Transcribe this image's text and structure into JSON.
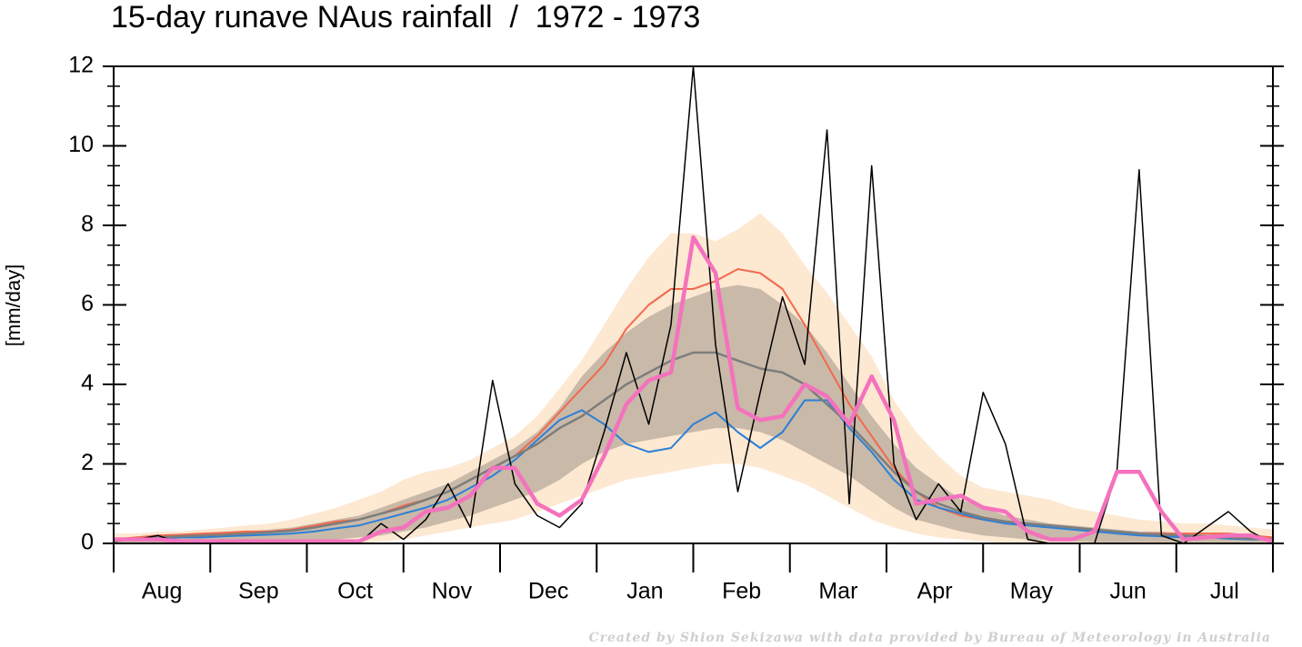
{
  "chart_data": {
    "type": "line",
    "title": "15-day runave NAus rainfall  /  1972 - 1973",
    "ylabel": "[mm/day]",
    "footnote": "Created by Shion Sekizawa with data provided by Bureau of Meteorology in Australia",
    "xlabels": [
      "Aug",
      "Sep",
      "Oct",
      "Nov",
      "Dec",
      "Jan",
      "Feb",
      "Mar",
      "Apr",
      "May",
      "Jun",
      "Jul"
    ],
    "ylim": [
      0,
      12
    ],
    "yticks": [
      0,
      2,
      4,
      6,
      8,
      10,
      12
    ],
    "bands": [
      {
        "color": "#fde8d2",
        "lower": [
          0,
          0,
          0,
          0,
          0,
          0,
          0,
          0,
          0,
          0,
          0,
          0,
          0.05,
          0.1,
          0.2,
          0.3,
          0.4,
          0.5,
          0.6,
          0.8,
          1.0,
          1.2,
          1.4,
          1.6,
          1.7,
          1.8,
          1.9,
          2.0,
          2.0,
          1.9,
          1.7,
          1.5,
          1.2,
          0.9,
          0.6,
          0.4,
          0.25,
          0.15,
          0.1,
          0.05,
          0,
          0,
          0,
          0,
          0,
          0,
          0,
          0,
          0,
          0,
          0,
          0,
          0
        ],
        "upper": [
          0.25,
          0.25,
          0.3,
          0.3,
          0.35,
          0.4,
          0.45,
          0.5,
          0.6,
          0.75,
          0.9,
          1.1,
          1.3,
          1.6,
          1.8,
          1.9,
          2.1,
          2.4,
          2.7,
          3.2,
          3.9,
          4.6,
          5.5,
          6.4,
          7.2,
          7.8,
          7.8,
          7.6,
          7.9,
          8.3,
          7.8,
          7.0,
          6.3,
          5.5,
          4.7,
          3.6,
          2.8,
          2.2,
          1.7,
          1.4,
          1.3,
          1.2,
          1.1,
          0.9,
          0.8,
          0.7,
          0.6,
          0.55,
          0.5,
          0.5,
          0.45,
          0.4,
          0.35
        ]
      },
      {
        "color": "#c9b9a8",
        "lower": [
          0.02,
          0.02,
          0.02,
          0.02,
          0.02,
          0.02,
          0.02,
          0.02,
          0.02,
          0.05,
          0.1,
          0.15,
          0.2,
          0.3,
          0.4,
          0.55,
          0.7,
          0.9,
          1.1,
          1.3,
          1.6,
          2.0,
          2.3,
          2.5,
          2.6,
          2.7,
          2.8,
          2.9,
          2.9,
          2.8,
          2.6,
          2.3,
          2.0,
          1.7,
          1.3,
          0.9,
          0.6,
          0.45,
          0.3,
          0.2,
          0.15,
          0.1,
          0.08,
          0.05,
          0.03,
          0.03,
          0.03,
          0.03,
          0.03,
          0.03,
          0.03,
          0.03,
          0.03
        ],
        "upper": [
          0.15,
          0.15,
          0.2,
          0.2,
          0.25,
          0.3,
          0.3,
          0.35,
          0.4,
          0.5,
          0.6,
          0.7,
          0.9,
          1.1,
          1.3,
          1.5,
          1.8,
          2.1,
          2.4,
          2.8,
          3.4,
          4.2,
          4.8,
          5.3,
          5.7,
          6.0,
          6.2,
          6.4,
          6.5,
          6.4,
          6.0,
          5.5,
          4.8,
          4.0,
          3.2,
          2.5,
          1.9,
          1.5,
          1.1,
          0.9,
          0.7,
          0.6,
          0.5,
          0.45,
          0.4,
          0.35,
          0.3,
          0.3,
          0.25,
          0.25,
          0.2,
          0.2,
          0.15
        ]
      }
    ],
    "series": [
      {
        "color": "#f2694c",
        "width": 2,
        "values": [
          0.1,
          0.15,
          0.2,
          0.22,
          0.25,
          0.27,
          0.3,
          0.3,
          0.35,
          0.45,
          0.55,
          0.6,
          0.75,
          0.95,
          1.1,
          1.3,
          1.6,
          1.9,
          2.2,
          2.7,
          3.3,
          3.9,
          4.5,
          5.4,
          6.0,
          6.4,
          6.4,
          6.6,
          6.9,
          6.8,
          6.4,
          5.5,
          4.5,
          3.5,
          2.7,
          1.9,
          1.3,
          0.9,
          0.7,
          0.6,
          0.55,
          0.5,
          0.45,
          0.4,
          0.35,
          0.3,
          0.25,
          0.25,
          0.25,
          0.25,
          0.25,
          0.2,
          0.15
        ]
      },
      {
        "color": "#2b80d6",
        "width": 2,
        "values": [
          0.1,
          0.1,
          0.12,
          0.15,
          0.15,
          0.18,
          0.2,
          0.22,
          0.25,
          0.3,
          0.38,
          0.45,
          0.6,
          0.75,
          0.9,
          1.1,
          1.4,
          1.7,
          2.1,
          2.6,
          3.1,
          3.35,
          3.0,
          2.5,
          2.3,
          2.4,
          3.0,
          3.3,
          2.8,
          2.4,
          2.8,
          3.6,
          3.6,
          2.9,
          2.3,
          1.6,
          1.1,
          0.9,
          0.75,
          0.6,
          0.5,
          0.45,
          0.4,
          0.35,
          0.3,
          0.25,
          0.2,
          0.18,
          0.15,
          0.15,
          0.12,
          0.1,
          0.1
        ]
      },
      {
        "color": "#7d7d7d",
        "width": 2.5,
        "values": [
          0.1,
          0.12,
          0.15,
          0.18,
          0.2,
          0.22,
          0.25,
          0.28,
          0.32,
          0.4,
          0.5,
          0.6,
          0.75,
          0.9,
          1.1,
          1.3,
          1.6,
          1.9,
          2.2,
          2.5,
          2.9,
          3.2,
          3.6,
          4.0,
          4.3,
          4.6,
          4.8,
          4.8,
          4.6,
          4.4,
          4.3,
          4.0,
          3.5,
          3.0,
          2.4,
          1.8,
          1.3,
          1.0,
          0.8,
          0.65,
          0.55,
          0.5,
          0.45,
          0.4,
          0.35,
          0.3,
          0.25,
          0.22,
          0.2,
          0.18,
          0.15,
          0.12,
          0.1
        ]
      },
      {
        "color": "#000000",
        "width": 1.5,
        "values": [
          0.05,
          0.1,
          0.2,
          0,
          0,
          0,
          0,
          0,
          0,
          0,
          0,
          0,
          0.5,
          0.1,
          0.6,
          1.5,
          0.4,
          4.1,
          1.5,
          0.7,
          0.4,
          1.0,
          2.8,
          4.8,
          3.0,
          5.5,
          12,
          5.0,
          1.3,
          3.8,
          6.2,
          4.5,
          10.4,
          1.0,
          9.5,
          2.0,
          0.6,
          1.5,
          0.8,
          3.8,
          2.5,
          0.1,
          0,
          0,
          0,
          1.8,
          9.4,
          0.2,
          0,
          0.4,
          0.8,
          0.3,
          0
        ]
      },
      {
        "color": "#f472bd",
        "width": 4.5,
        "values": [
          0.1,
          0.1,
          0.1,
          0.05,
          0.05,
          0.05,
          0.05,
          0.05,
          0.05,
          0.05,
          0.05,
          0.05,
          0.3,
          0.4,
          0.8,
          0.9,
          1.2,
          1.9,
          1.9,
          1.0,
          0.7,
          1.1,
          2.2,
          3.5,
          4.1,
          4.3,
          7.7,
          6.8,
          3.4,
          3.1,
          3.2,
          4.0,
          3.7,
          3.0,
          4.2,
          3.1,
          1.0,
          1.1,
          1.2,
          0.9,
          0.8,
          0.3,
          0.1,
          0.1,
          0.3,
          1.8,
          1.8,
          0.8,
          0.1,
          0.15,
          0.2,
          0.2,
          0.05
        ]
      }
    ]
  }
}
